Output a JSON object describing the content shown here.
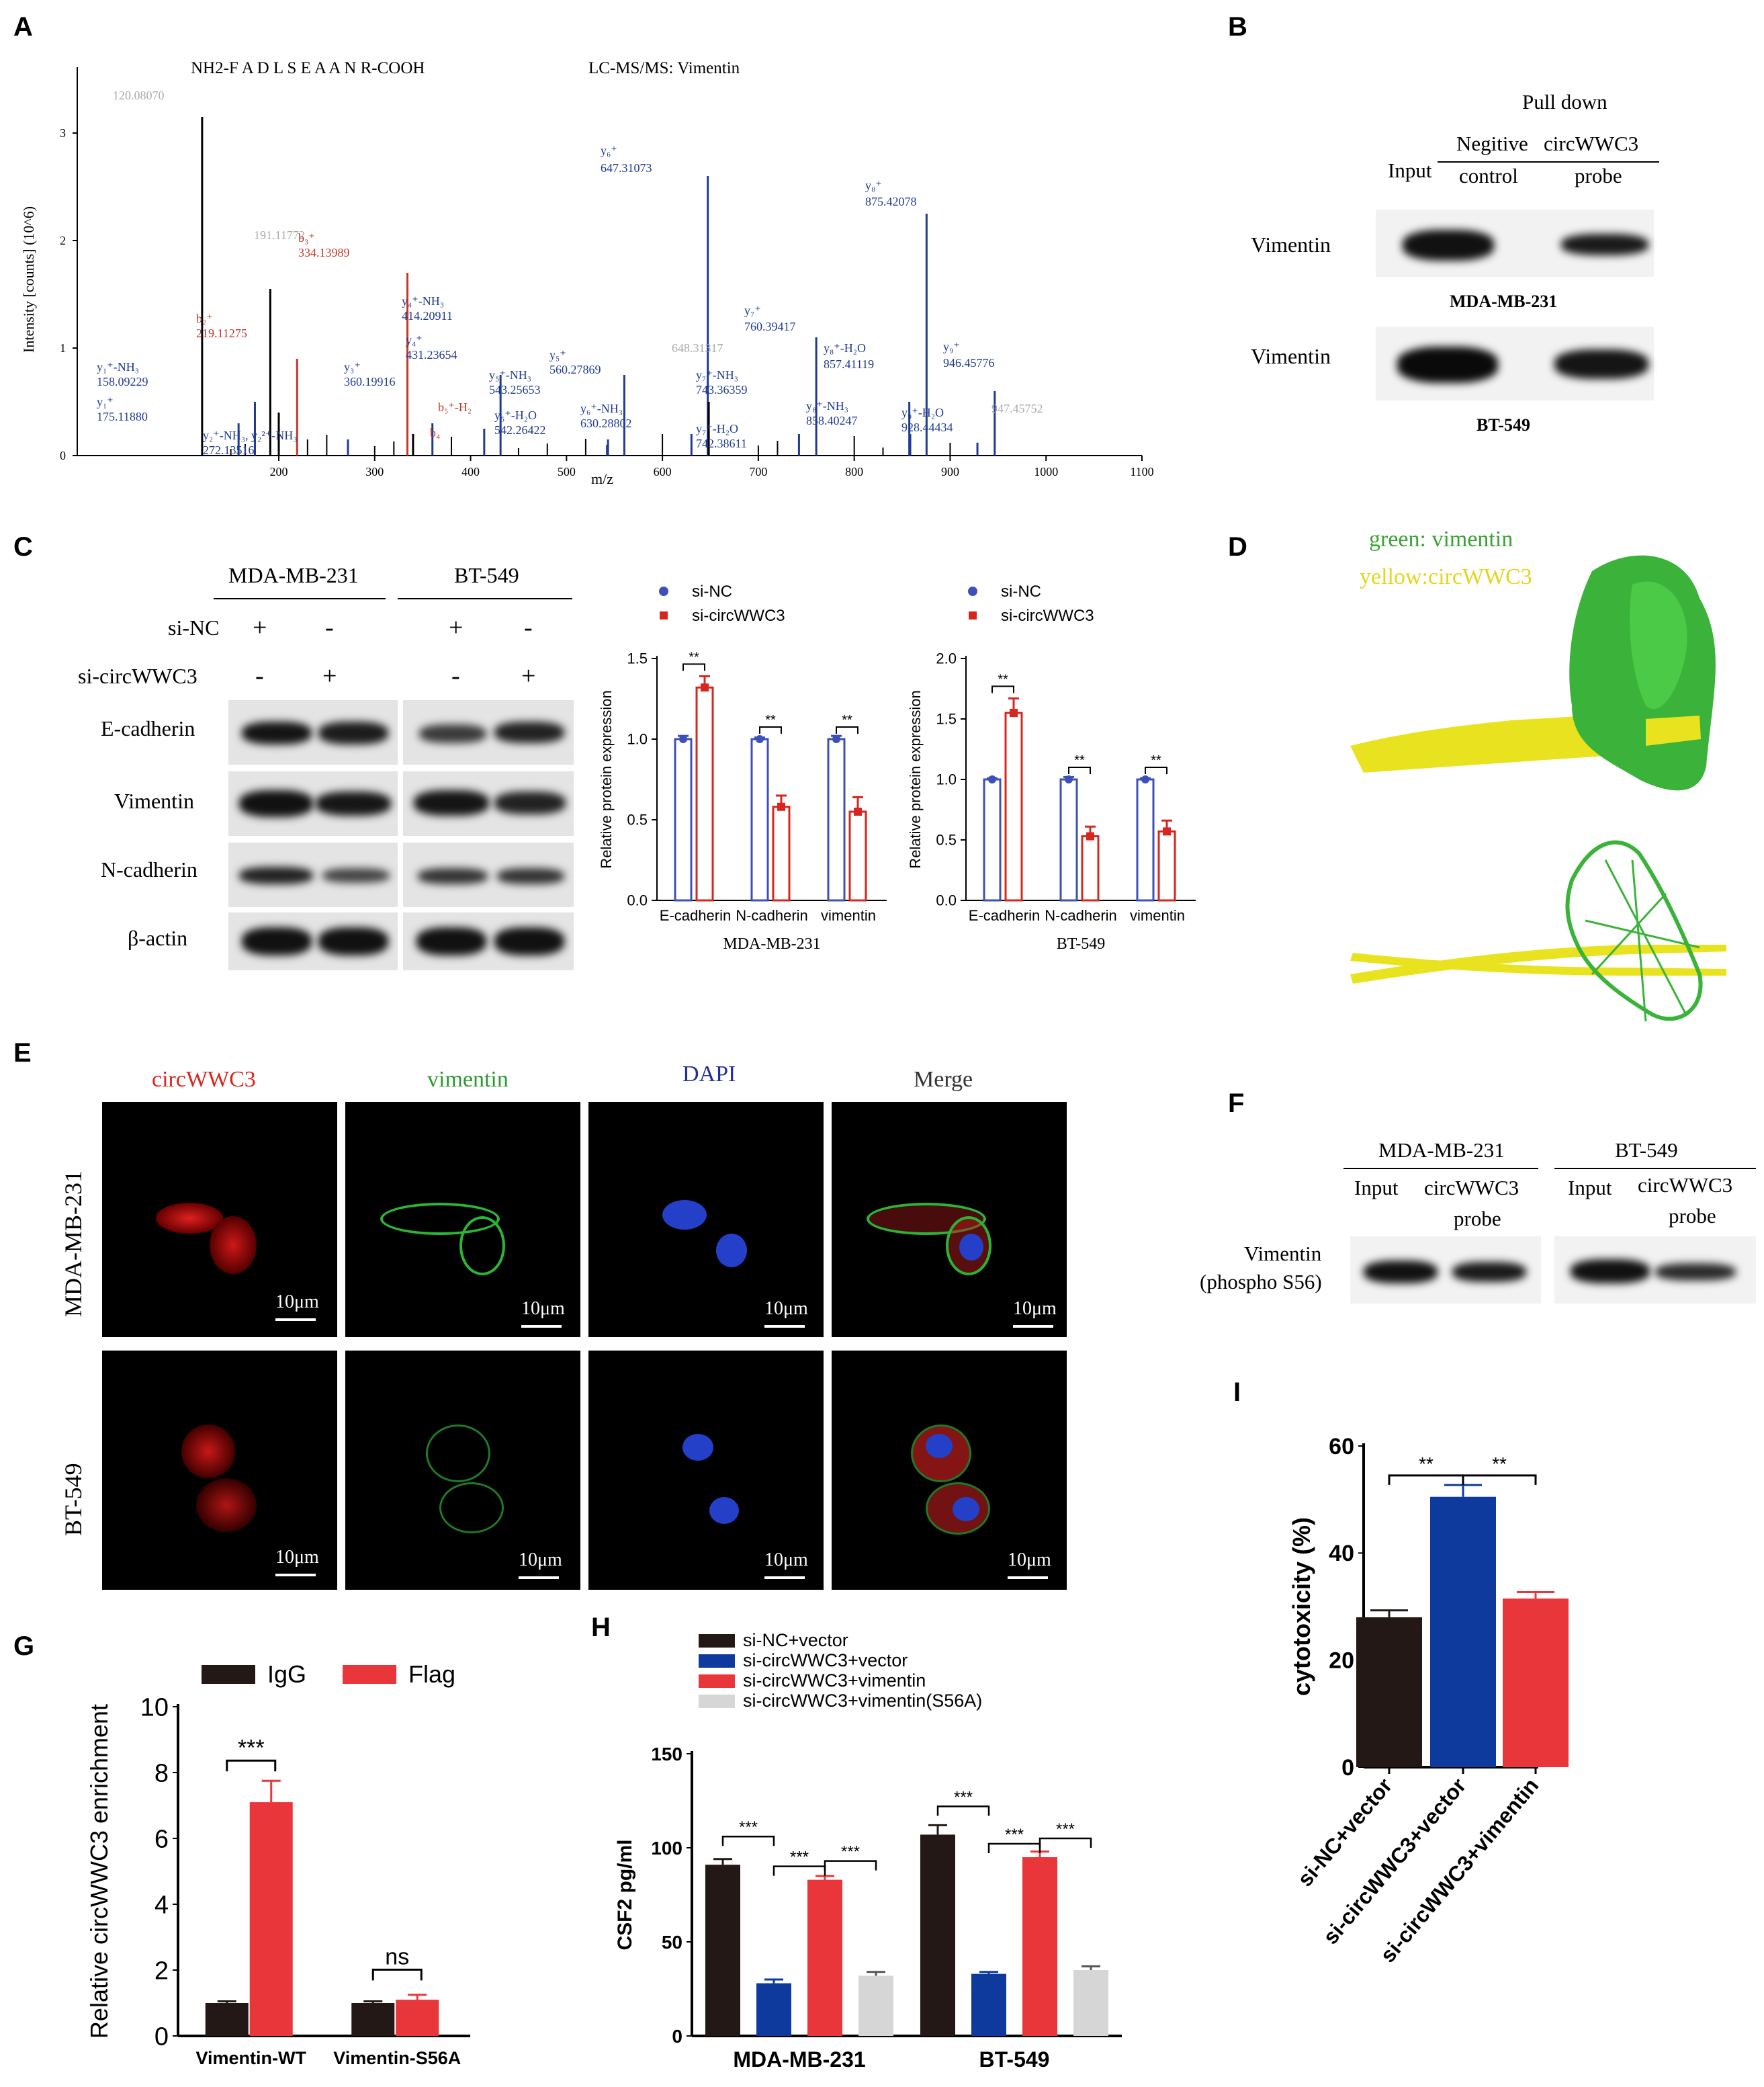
{
  "panels": {
    "A": "A",
    "B": "B",
    "C": "C",
    "D": "D",
    "E": "E",
    "F": "F",
    "G": "G",
    "H": "H",
    "I": "I"
  },
  "panelA": {
    "peptide": "NH2-F A D L S E A A N R-COOH",
    "method": "LC-MS/MS: Vimentin",
    "ylabel": "Intensity [counts] (10^6)",
    "xlabel": "m/z",
    "yticks": [
      "0",
      "1",
      "2",
      "3"
    ],
    "xticks": [
      "200",
      "300",
      "400",
      "500",
      "600",
      "700",
      "800",
      "900",
      "1000",
      "1100"
    ],
    "peak_labels": [
      {
        "text": "120.08070",
        "c": "#aaaaaa"
      },
      {
        "text": "191.11772",
        "c": "#aaaaaa"
      },
      {
        "text": "y₁⁺-NH₃",
        "c": "#1f3a93"
      },
      {
        "text": "158.09229",
        "c": "#1f3a93"
      },
      {
        "text": "y₁⁺",
        "c": "#1f3a93"
      },
      {
        "text": "175.11880",
        "c": "#1f3a93"
      },
      {
        "text": "b₂⁺",
        "c": "#c0392b"
      },
      {
        "text": "219.11275",
        "c": "#c0392b"
      },
      {
        "text": "y₂⁺-NH₃, y₂²⁺-NH₃",
        "c": "#1f3a93"
      },
      {
        "text": "272.13516",
        "c": "#1f3a93"
      },
      {
        "text": "b₃⁺",
        "c": "#c0392b"
      },
      {
        "text": "334.13989",
        "c": "#c0392b"
      },
      {
        "text": "y₃⁺",
        "c": "#1f3a93"
      },
      {
        "text": "360.19916",
        "c": "#1f3a93"
      },
      {
        "text": "y₄⁺-NH₃",
        "c": "#1f3a93"
      },
      {
        "text": "414.20911",
        "c": "#1f3a93"
      },
      {
        "text": "y₄⁺",
        "c": "#1f3a93"
      },
      {
        "text": "431.23654",
        "c": "#1f3a93"
      },
      {
        "text": "b₅⁺-H₂",
        "c": "#c0392b"
      },
      {
        "text": "b₄",
        "c": "#c0392b"
      },
      {
        "text": "y₅⁺-NH₃",
        "c": "#1f3a93"
      },
      {
        "text": "543.25653",
        "c": "#1f3a93"
      },
      {
        "text": "y₅⁺-H₂O",
        "c": "#1f3a93"
      },
      {
        "text": "542.26422",
        "c": "#1f3a93"
      },
      {
        "text": "y₅⁺",
        "c": "#1f3a93"
      },
      {
        "text": "560.27869",
        "c": "#1f3a93"
      },
      {
        "text": "y₆⁺-NH₃",
        "c": "#1f3a93"
      },
      {
        "text": "630.28802",
        "c": "#1f3a93"
      },
      {
        "text": "y₆⁺",
        "c": "#1f3a93"
      },
      {
        "text": "647.31073",
        "c": "#1f3a93"
      },
      {
        "text": "648.31317",
        "c": "#aaaaaa"
      },
      {
        "text": "y₇⁺-NH₃",
        "c": "#1f3a93"
      },
      {
        "text": "743.36359",
        "c": "#1f3a93"
      },
      {
        "text": "y₇⁺-H₂O",
        "c": "#1f3a93"
      },
      {
        "text": "742.38611",
        "c": "#1f3a93"
      },
      {
        "text": "y₇⁺",
        "c": "#1f3a93"
      },
      {
        "text": "760.39417",
        "c": "#1f3a93"
      },
      {
        "text": "y₈⁺-H₂O",
        "c": "#1f3a93"
      },
      {
        "text": "857.41119",
        "c": "#1f3a93"
      },
      {
        "text": "y₈⁺-NH₃",
        "c": "#1f3a93"
      },
      {
        "text": "858.40247",
        "c": "#1f3a93"
      },
      {
        "text": "y₈⁺",
        "c": "#1f3a93"
      },
      {
        "text": "875.42078",
        "c": "#1f3a93"
      },
      {
        "text": "y₉⁺-H₂O",
        "c": "#1f3a93"
      },
      {
        "text": "928.44434",
        "c": "#1f3a93"
      },
      {
        "text": "y₉⁺",
        "c": "#1f3a93"
      },
      {
        "text": "946.45776",
        "c": "#1f3a93"
      },
      {
        "text": "947.45752",
        "c": "#aaaaaa"
      }
    ]
  },
  "panelB": {
    "pulldown": "Pull  down",
    "input": "Input",
    "neg1": "Negitive",
    "neg2": "control",
    "probe1": "circWWC3",
    "probe2": "probe",
    "row1": "Vimentin",
    "row2": "Vimentin",
    "cell1": "MDA-MB-231",
    "cell2": "BT-549"
  },
  "panelC": {
    "cell1": "MDA-MB-231",
    "cell2": "BT-549",
    "sinc": "si-NC",
    "sicirc": "si-circWWC3",
    "signs_sinc": [
      "+",
      "-",
      "+",
      "-"
    ],
    "signs_sicirc": [
      "-",
      "+",
      "-",
      "+"
    ],
    "rows": [
      "E-cadherin",
      "Vimentin",
      "N-cadherin",
      "β-actin"
    ]
  },
  "panelD": {
    "green": "green: vimentin",
    "yellow": "yellow:circWWC3"
  },
  "panelE": {
    "cols": [
      "circWWC3",
      "vimentin",
      "DAPI",
      "Merge"
    ],
    "rows": [
      "MDA-MB-231",
      "BT-549"
    ],
    "scale": "10μm"
  },
  "panelF": {
    "cell1": "MDA-MB-231",
    "cell2": "BT-549",
    "input": "Input",
    "probe1": "circWWC3",
    "probe2": "probe",
    "row1": "Vimentin",
    "row2": "(phospho S56)"
  },
  "chart_data": [
    {
      "id": "C-left",
      "type": "bar",
      "title": "",
      "xlabel": "MDA-MB-231",
      "ylabel": "Relative protein expression",
      "categories": [
        "E-cadherin",
        "N-cadherin",
        "vimentin"
      ],
      "ylim": [
        0,
        1.5
      ],
      "yticks": [
        0.0,
        0.5,
        1.0,
        1.5
      ],
      "series": [
        {
          "name": "si-NC",
          "values": [
            1.0,
            1.0,
            1.0
          ],
          "err": [
            0.02,
            0.01,
            0.02
          ]
        },
        {
          "name": "si-circWWC3",
          "values": [
            1.32,
            0.58,
            0.55
          ],
          "err": [
            0.07,
            0.07,
            0.09
          ]
        }
      ],
      "significance": [
        "**",
        "**",
        "**"
      ]
    },
    {
      "id": "C-right",
      "type": "bar",
      "title": "",
      "xlabel": "BT-549",
      "ylabel": "Relative protein expression",
      "categories": [
        "E-cadherin",
        "N-cadherin",
        "vimentin"
      ],
      "ylim": [
        0,
        2.0
      ],
      "yticks": [
        0.0,
        0.5,
        1.0,
        1.5,
        2.0
      ],
      "series": [
        {
          "name": "si-NC",
          "values": [
            1.0,
            1.0,
            1.0
          ],
          "err": [
            0.01,
            0.02,
            0.01
          ]
        },
        {
          "name": "si-circWWC3",
          "values": [
            1.55,
            0.53,
            0.57
          ],
          "err": [
            0.12,
            0.08,
            0.09
          ]
        }
      ],
      "significance": [
        "**",
        "**",
        "**"
      ]
    },
    {
      "id": "G",
      "type": "bar",
      "title": "",
      "xlabel": "",
      "ylabel": "Relative circWWC3 enrichment",
      "categories": [
        "Vimentin-WT",
        "Vimentin-S56A"
      ],
      "ylim": [
        0,
        10
      ],
      "yticks": [
        0,
        2,
        4,
        6,
        8,
        10
      ],
      "series": [
        {
          "name": "IgG",
          "values": [
            1.0,
            1.0
          ],
          "err": [
            0.05,
            0.05
          ]
        },
        {
          "name": "Flag",
          "values": [
            7.1,
            1.1
          ],
          "err": [
            0.65,
            0.15
          ]
        }
      ],
      "significance": [
        "***",
        "ns"
      ]
    },
    {
      "id": "H",
      "type": "bar",
      "title": "",
      "xlabel": "",
      "ylabel": "CSF2 pg/ml",
      "categories": [
        "MDA-MB-231",
        "BT-549"
      ],
      "ylim": [
        0,
        150
      ],
      "yticks": [
        0,
        50,
        100,
        150
      ],
      "series": [
        {
          "name": "si-NC+vector",
          "values": [
            91,
            107
          ],
          "err": [
            3,
            5
          ]
        },
        {
          "name": "si-circWWC3+vector",
          "values": [
            28,
            33
          ],
          "err": [
            2,
            1
          ]
        },
        {
          "name": "si-circWWC3+vimentin",
          "values": [
            83,
            95
          ],
          "err": [
            2,
            3
          ]
        },
        {
          "name": "si-circWWC3+vimentin(S56A)",
          "values": [
            32,
            35
          ],
          "err": [
            2,
            2
          ]
        }
      ],
      "significance": [
        "***",
        "***",
        "***",
        "***",
        "***",
        "***"
      ]
    },
    {
      "id": "I",
      "type": "bar",
      "title": "",
      "xlabel": "",
      "ylabel": "cytotoxicity (%)",
      "categories": [
        "si-NC+vector",
        "si-circWWC3+vector",
        "si-circWWC3+vimentin"
      ],
      "ylim": [
        0,
        60
      ],
      "yticks": [
        0,
        20,
        40,
        60
      ],
      "values": [
        28,
        50.5,
        31.5
      ],
      "err": [
        1.3,
        2.2,
        1.2
      ],
      "colors": [
        "#231815",
        "#0d3a9c",
        "#e8363a"
      ],
      "significance": [
        "**",
        "**"
      ]
    }
  ],
  "colors": {
    "blue": "#3d4fb8",
    "red": "#d7261e",
    "black": "#231815",
    "navy": "#0d3a9c",
    "lred": "#e8363a",
    "gray": "#d6d6d6"
  }
}
